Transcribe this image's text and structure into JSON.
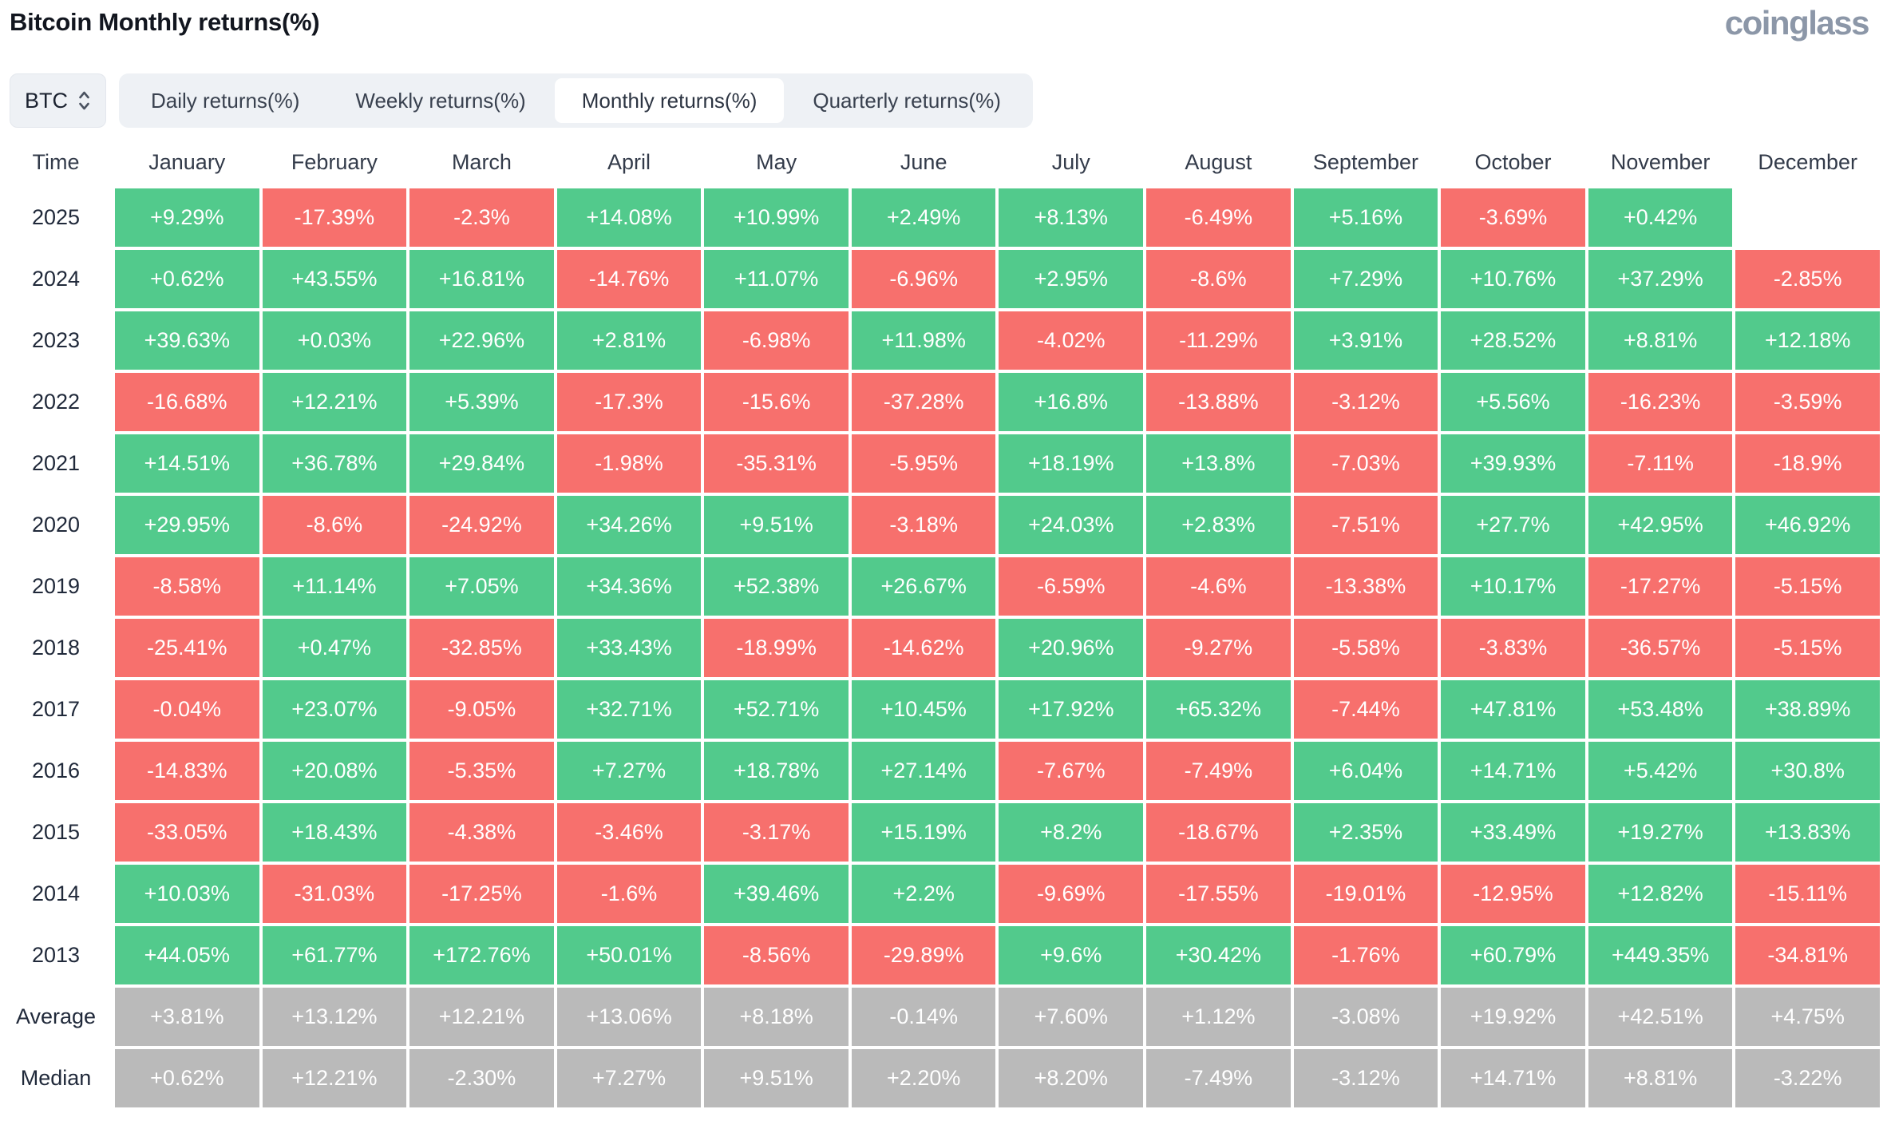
{
  "header": {
    "title": "Bitcoin Monthly returns(%)",
    "logo": "coinglass"
  },
  "controls": {
    "symbol_select": {
      "value": "BTC"
    },
    "tabs": [
      {
        "label": "Daily returns(%)",
        "active": false
      },
      {
        "label": "Weekly returns(%)",
        "active": false
      },
      {
        "label": "Monthly returns(%)",
        "active": true
      },
      {
        "label": "Quarterly returns(%)",
        "active": false
      }
    ]
  },
  "colors": {
    "positive": "#52ca8c",
    "negative": "#f7706d",
    "summary": "#bababa",
    "tab_bar_bg": "#eef1f5",
    "active_tab_bg": "#ffffff"
  },
  "chart_data": {
    "type": "heatmap",
    "title": "Bitcoin Monthly returns(%)",
    "columns": [
      "Time",
      "January",
      "February",
      "March",
      "April",
      "May",
      "June",
      "July",
      "August",
      "September",
      "October",
      "November",
      "December"
    ],
    "rows": [
      {
        "label": "2025",
        "summary": false,
        "values": [
          "+9.29%",
          "-17.39%",
          "-2.3%",
          "+14.08%",
          "+10.99%",
          "+2.49%",
          "+8.13%",
          "-6.49%",
          "+5.16%",
          "-3.69%",
          "+0.42%",
          ""
        ]
      },
      {
        "label": "2024",
        "summary": false,
        "values": [
          "+0.62%",
          "+43.55%",
          "+16.81%",
          "-14.76%",
          "+11.07%",
          "-6.96%",
          "+2.95%",
          "-8.6%",
          "+7.29%",
          "+10.76%",
          "+37.29%",
          "-2.85%"
        ]
      },
      {
        "label": "2023",
        "summary": false,
        "values": [
          "+39.63%",
          "+0.03%",
          "+22.96%",
          "+2.81%",
          "-6.98%",
          "+11.98%",
          "-4.02%",
          "-11.29%",
          "+3.91%",
          "+28.52%",
          "+8.81%",
          "+12.18%"
        ]
      },
      {
        "label": "2022",
        "summary": false,
        "values": [
          "-16.68%",
          "+12.21%",
          "+5.39%",
          "-17.3%",
          "-15.6%",
          "-37.28%",
          "+16.8%",
          "-13.88%",
          "-3.12%",
          "+5.56%",
          "-16.23%",
          "-3.59%"
        ]
      },
      {
        "label": "2021",
        "summary": false,
        "values": [
          "+14.51%",
          "+36.78%",
          "+29.84%",
          "-1.98%",
          "-35.31%",
          "-5.95%",
          "+18.19%",
          "+13.8%",
          "-7.03%",
          "+39.93%",
          "-7.11%",
          "-18.9%"
        ]
      },
      {
        "label": "2020",
        "summary": false,
        "values": [
          "+29.95%",
          "-8.6%",
          "-24.92%",
          "+34.26%",
          "+9.51%",
          "-3.18%",
          "+24.03%",
          "+2.83%",
          "-7.51%",
          "+27.7%",
          "+42.95%",
          "+46.92%"
        ]
      },
      {
        "label": "2019",
        "summary": false,
        "values": [
          "-8.58%",
          "+11.14%",
          "+7.05%",
          "+34.36%",
          "+52.38%",
          "+26.67%",
          "-6.59%",
          "-4.6%",
          "-13.38%",
          "+10.17%",
          "-17.27%",
          "-5.15%"
        ]
      },
      {
        "label": "2018",
        "summary": false,
        "values": [
          "-25.41%",
          "+0.47%",
          "-32.85%",
          "+33.43%",
          "-18.99%",
          "-14.62%",
          "+20.96%",
          "-9.27%",
          "-5.58%",
          "-3.83%",
          "-36.57%",
          "-5.15%"
        ]
      },
      {
        "label": "2017",
        "summary": false,
        "values": [
          "-0.04%",
          "+23.07%",
          "-9.05%",
          "+32.71%",
          "+52.71%",
          "+10.45%",
          "+17.92%",
          "+65.32%",
          "-7.44%",
          "+47.81%",
          "+53.48%",
          "+38.89%"
        ]
      },
      {
        "label": "2016",
        "summary": false,
        "values": [
          "-14.83%",
          "+20.08%",
          "-5.35%",
          "+7.27%",
          "+18.78%",
          "+27.14%",
          "-7.67%",
          "-7.49%",
          "+6.04%",
          "+14.71%",
          "+5.42%",
          "+30.8%"
        ]
      },
      {
        "label": "2015",
        "summary": false,
        "values": [
          "-33.05%",
          "+18.43%",
          "-4.38%",
          "-3.46%",
          "-3.17%",
          "+15.19%",
          "+8.2%",
          "-18.67%",
          "+2.35%",
          "+33.49%",
          "+19.27%",
          "+13.83%"
        ]
      },
      {
        "label": "2014",
        "summary": false,
        "values": [
          "+10.03%",
          "-31.03%",
          "-17.25%",
          "-1.6%",
          "+39.46%",
          "+2.2%",
          "-9.69%",
          "-17.55%",
          "-19.01%",
          "-12.95%",
          "+12.82%",
          "-15.11%"
        ]
      },
      {
        "label": "2013",
        "summary": false,
        "values": [
          "+44.05%",
          "+61.77%",
          "+172.76%",
          "+50.01%",
          "-8.56%",
          "-29.89%",
          "+9.6%",
          "+30.42%",
          "-1.76%",
          "+60.79%",
          "+449.35%",
          "-34.81%"
        ]
      },
      {
        "label": "Average",
        "summary": true,
        "values": [
          "+3.81%",
          "+13.12%",
          "+12.21%",
          "+13.06%",
          "+8.18%",
          "-0.14%",
          "+7.60%",
          "+1.12%",
          "-3.08%",
          "+19.92%",
          "+42.51%",
          "+4.75%"
        ]
      },
      {
        "label": "Median",
        "summary": true,
        "values": [
          "+0.62%",
          "+12.21%",
          "-2.30%",
          "+7.27%",
          "+9.51%",
          "+2.20%",
          "+8.20%",
          "-7.49%",
          "-3.12%",
          "+14.71%",
          "+8.81%",
          "-3.22%"
        ]
      }
    ]
  }
}
